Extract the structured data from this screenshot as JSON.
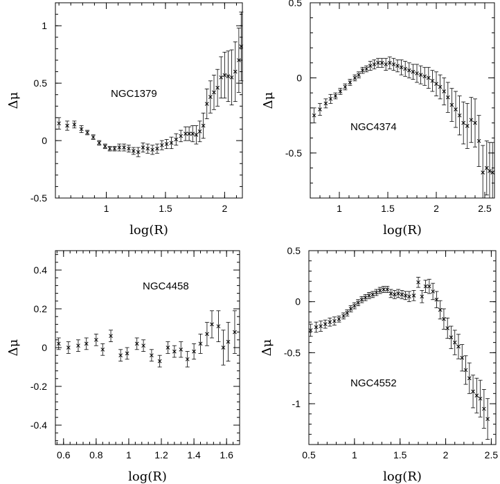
{
  "chart_data": [
    {
      "type": "scatter",
      "annotation": "NGC1379",
      "xlabel": "log(R)",
      "ylabel": "Δμ",
      "xlim": [
        0.57,
        2.15
      ],
      "ylim": [
        -0.5,
        1.2
      ],
      "xticks": [
        {
          "v": 1,
          "label": "1"
        },
        {
          "v": 1.5,
          "label": "1.5"
        },
        {
          "v": 2,
          "label": "2"
        }
      ],
      "yticks": [
        {
          "v": -0.5,
          "label": "-0.5"
        },
        {
          "v": 0,
          "label": "0"
        },
        {
          "v": 0.5,
          "label": "0.5"
        },
        {
          "v": 1,
          "label": "1"
        }
      ],
      "points": [
        {
          "x": 0.6,
          "y": 0.15,
          "e": 0.05
        },
        {
          "x": 0.67,
          "y": 0.13,
          "e": 0.04
        },
        {
          "x": 0.73,
          "y": 0.14,
          "e": 0.03
        },
        {
          "x": 0.79,
          "y": 0.1,
          "e": 0.03
        },
        {
          "x": 0.84,
          "y": 0.07,
          "e": 0.02
        },
        {
          "x": 0.89,
          "y": 0.03,
          "e": 0.02
        },
        {
          "x": 0.94,
          "y": -0.02,
          "e": 0.02
        },
        {
          "x": 0.99,
          "y": -0.05,
          "e": 0.02
        },
        {
          "x": 1.03,
          "y": -0.07,
          "e": 0.02
        },
        {
          "x": 1.07,
          "y": -0.07,
          "e": 0.02
        },
        {
          "x": 1.11,
          "y": -0.06,
          "e": 0.03
        },
        {
          "x": 1.15,
          "y": -0.06,
          "e": 0.03
        },
        {
          "x": 1.19,
          "y": -0.07,
          "e": 0.03
        },
        {
          "x": 1.23,
          "y": -0.09,
          "e": 0.03
        },
        {
          "x": 1.27,
          "y": -0.1,
          "e": 0.04
        },
        {
          "x": 1.31,
          "y": -0.06,
          "e": 0.04
        },
        {
          "x": 1.35,
          "y": -0.07,
          "e": 0.04
        },
        {
          "x": 1.39,
          "y": -0.08,
          "e": 0.04
        },
        {
          "x": 1.43,
          "y": -0.07,
          "e": 0.04
        },
        {
          "x": 1.47,
          "y": -0.04,
          "e": 0.04
        },
        {
          "x": 1.51,
          "y": -0.03,
          "e": 0.04
        },
        {
          "x": 1.55,
          "y": -0.02,
          "e": 0.05
        },
        {
          "x": 1.59,
          "y": 0.01,
          "e": 0.05
        },
        {
          "x": 1.63,
          "y": 0.04,
          "e": 0.05
        },
        {
          "x": 1.67,
          "y": 0.06,
          "e": 0.06
        },
        {
          "x": 1.7,
          "y": 0.06,
          "e": 0.06
        },
        {
          "x": 1.73,
          "y": 0.06,
          "e": 0.07
        },
        {
          "x": 1.76,
          "y": 0.05,
          "e": 0.08
        },
        {
          "x": 1.79,
          "y": 0.08,
          "e": 0.09
        },
        {
          "x": 1.82,
          "y": 0.13,
          "e": 0.11
        },
        {
          "x": 1.85,
          "y": 0.32,
          "e": 0.13
        },
        {
          "x": 1.88,
          "y": 0.38,
          "e": 0.14
        },
        {
          "x": 1.91,
          "y": 0.42,
          "e": 0.15
        },
        {
          "x": 1.94,
          "y": 0.46,
          "e": 0.16
        },
        {
          "x": 1.97,
          "y": 0.55,
          "e": 0.18
        },
        {
          "x": 2.0,
          "y": 0.57,
          "e": 0.2
        },
        {
          "x": 2.03,
          "y": 0.56,
          "e": 0.22
        },
        {
          "x": 2.06,
          "y": 0.55,
          "e": 0.24
        },
        {
          "x": 2.09,
          "y": 0.6,
          "e": 0.26
        },
        {
          "x": 2.12,
          "y": 0.7,
          "e": 0.28
        },
        {
          "x": 2.14,
          "y": 0.82,
          "e": 0.3
        }
      ]
    },
    {
      "type": "scatter",
      "annotation": "NGC4374",
      "xlabel": "log(R)",
      "ylabel": "Δμ",
      "xlim": [
        0.7,
        2.6
      ],
      "ylim": [
        -0.8,
        0.5
      ],
      "xticks": [
        {
          "v": 1,
          "label": "1"
        },
        {
          "v": 1.5,
          "label": "1.5"
        },
        {
          "v": 2,
          "label": "2"
        },
        {
          "v": 2.5,
          "label": "2.5"
        }
      ],
      "yticks": [
        {
          "v": -0.5,
          "label": "-0.5"
        },
        {
          "v": 0,
          "label": "0"
        },
        {
          "v": 0.5,
          "label": "0.5"
        }
      ],
      "points": [
        {
          "x": 0.74,
          "y": -0.25,
          "e": 0.05
        },
        {
          "x": 0.8,
          "y": -0.21,
          "e": 0.04
        },
        {
          "x": 0.86,
          "y": -0.17,
          "e": 0.03
        },
        {
          "x": 0.91,
          "y": -0.14,
          "e": 0.03
        },
        {
          "x": 0.96,
          "y": -0.12,
          "e": 0.02
        },
        {
          "x": 1.01,
          "y": -0.09,
          "e": 0.02
        },
        {
          "x": 1.06,
          "y": -0.06,
          "e": 0.02
        },
        {
          "x": 1.11,
          "y": -0.03,
          "e": 0.02
        },
        {
          "x": 1.16,
          "y": 0.0,
          "e": 0.02
        },
        {
          "x": 1.2,
          "y": 0.02,
          "e": 0.02
        },
        {
          "x": 1.24,
          "y": 0.05,
          "e": 0.02
        },
        {
          "x": 1.28,
          "y": 0.06,
          "e": 0.02
        },
        {
          "x": 1.32,
          "y": 0.08,
          "e": 0.03
        },
        {
          "x": 1.36,
          "y": 0.09,
          "e": 0.03
        },
        {
          "x": 1.4,
          "y": 0.1,
          "e": 0.03
        },
        {
          "x": 1.44,
          "y": 0.1,
          "e": 0.03
        },
        {
          "x": 1.48,
          "y": 0.09,
          "e": 0.04
        },
        {
          "x": 1.52,
          "y": 0.1,
          "e": 0.04
        },
        {
          "x": 1.56,
          "y": 0.09,
          "e": 0.04
        },
        {
          "x": 1.6,
          "y": 0.08,
          "e": 0.04
        },
        {
          "x": 1.64,
          "y": 0.07,
          "e": 0.05
        },
        {
          "x": 1.68,
          "y": 0.06,
          "e": 0.05
        },
        {
          "x": 1.72,
          "y": 0.05,
          "e": 0.05
        },
        {
          "x": 1.76,
          "y": 0.04,
          "e": 0.05
        },
        {
          "x": 1.8,
          "y": 0.03,
          "e": 0.06
        },
        {
          "x": 1.84,
          "y": 0.02,
          "e": 0.06
        },
        {
          "x": 1.88,
          "y": 0.01,
          "e": 0.06
        },
        {
          "x": 1.92,
          "y": 0.0,
          "e": 0.07
        },
        {
          "x": 1.96,
          "y": -0.02,
          "e": 0.07
        },
        {
          "x": 2.0,
          "y": -0.04,
          "e": 0.08
        },
        {
          "x": 2.04,
          "y": -0.06,
          "e": 0.08
        },
        {
          "x": 2.08,
          "y": -0.09,
          "e": 0.09
        },
        {
          "x": 2.12,
          "y": -0.13,
          "e": 0.1
        },
        {
          "x": 2.16,
          "y": -0.18,
          "e": 0.11
        },
        {
          "x": 2.2,
          "y": -0.21,
          "e": 0.12
        },
        {
          "x": 2.24,
          "y": -0.25,
          "e": 0.13
        },
        {
          "x": 2.28,
          "y": -0.3,
          "e": 0.14
        },
        {
          "x": 2.32,
          "y": -0.32,
          "e": 0.15
        },
        {
          "x": 2.36,
          "y": -0.28,
          "e": 0.15
        },
        {
          "x": 2.4,
          "y": -0.3,
          "e": 0.16
        },
        {
          "x": 2.44,
          "y": -0.42,
          "e": 0.17
        },
        {
          "x": 2.48,
          "y": -0.63,
          "e": 0.18
        },
        {
          "x": 2.52,
          "y": -0.6,
          "e": 0.18
        },
        {
          "x": 2.55,
          "y": -0.62,
          "e": 0.19
        },
        {
          "x": 2.58,
          "y": -0.63,
          "e": 0.2
        }
      ]
    },
    {
      "type": "scatter",
      "annotation": "NGC4458",
      "xlabel": "log(R)",
      "ylabel": "Δμ",
      "xlim": [
        0.55,
        1.68
      ],
      "ylim": [
        -0.5,
        0.5
      ],
      "xticks": [
        {
          "v": 0.6,
          "label": "0.6"
        },
        {
          "v": 0.8,
          "label": "0.8"
        },
        {
          "v": 1.0,
          "label": "1"
        },
        {
          "v": 1.2,
          "label": "1.2"
        },
        {
          "v": 1.4,
          "label": "1.4"
        },
        {
          "v": 1.6,
          "label": "1.6"
        }
      ],
      "yticks": [
        {
          "v": -0.4,
          "label": "-0.4"
        },
        {
          "v": -0.2,
          "label": "-0.2"
        },
        {
          "v": 0,
          "label": "0"
        },
        {
          "v": 0.2,
          "label": "0.2"
        },
        {
          "v": 0.4,
          "label": "0.4"
        }
      ],
      "points": [
        {
          "x": 0.57,
          "y": 0.02,
          "e": 0.03
        },
        {
          "x": 0.63,
          "y": 0.0,
          "e": 0.03
        },
        {
          "x": 0.69,
          "y": 0.01,
          "e": 0.03
        },
        {
          "x": 0.74,
          "y": 0.02,
          "e": 0.03
        },
        {
          "x": 0.8,
          "y": 0.04,
          "e": 0.03
        },
        {
          "x": 0.84,
          "y": -0.01,
          "e": 0.03
        },
        {
          "x": 0.89,
          "y": 0.06,
          "e": 0.03
        },
        {
          "x": 0.95,
          "y": -0.04,
          "e": 0.03
        },
        {
          "x": 0.99,
          "y": -0.03,
          "e": 0.03
        },
        {
          "x": 1.05,
          "y": 0.02,
          "e": 0.03
        },
        {
          "x": 1.09,
          "y": 0.01,
          "e": 0.03
        },
        {
          "x": 1.14,
          "y": -0.04,
          "e": 0.03
        },
        {
          "x": 1.19,
          "y": -0.07,
          "e": 0.03
        },
        {
          "x": 1.24,
          "y": 0.0,
          "e": 0.03
        },
        {
          "x": 1.28,
          "y": -0.02,
          "e": 0.03
        },
        {
          "x": 1.32,
          "y": -0.01,
          "e": 0.04
        },
        {
          "x": 1.36,
          "y": -0.06,
          "e": 0.04
        },
        {
          "x": 1.4,
          "y": -0.02,
          "e": 0.04
        },
        {
          "x": 1.44,
          "y": 0.02,
          "e": 0.05
        },
        {
          "x": 1.48,
          "y": 0.07,
          "e": 0.06
        },
        {
          "x": 1.51,
          "y": 0.12,
          "e": 0.07
        },
        {
          "x": 1.55,
          "y": 0.11,
          "e": 0.08
        },
        {
          "x": 1.58,
          "y": 0.0,
          "e": 0.09
        },
        {
          "x": 1.61,
          "y": 0.03,
          "e": 0.1
        },
        {
          "x": 1.65,
          "y": 0.08,
          "e": 0.11
        }
      ]
    },
    {
      "type": "scatter",
      "annotation": "NGC4552",
      "xlabel": "log(R)",
      "ylabel": "Δμ",
      "xlim": [
        0.5,
        2.55
      ],
      "ylim": [
        -1.4,
        0.5
      ],
      "xticks": [
        {
          "v": 0.5,
          "label": "0.5"
        },
        {
          "v": 1,
          "label": "1"
        },
        {
          "v": 1.5,
          "label": "1.5"
        },
        {
          "v": 2,
          "label": "2"
        },
        {
          "v": 2.5,
          "label": "2.5"
        }
      ],
      "yticks": [
        {
          "v": -1,
          "label": "-1"
        },
        {
          "v": -0.5,
          "label": "-0.5"
        },
        {
          "v": 0,
          "label": "0"
        },
        {
          "v": 0.5,
          "label": "0.5"
        }
      ],
      "points": [
        {
          "x": 0.52,
          "y": -0.28,
          "e": 0.06
        },
        {
          "x": 0.58,
          "y": -0.25,
          "e": 0.05
        },
        {
          "x": 0.63,
          "y": -0.24,
          "e": 0.05
        },
        {
          "x": 0.68,
          "y": -0.22,
          "e": 0.04
        },
        {
          "x": 0.73,
          "y": -0.2,
          "e": 0.04
        },
        {
          "x": 0.78,
          "y": -0.19,
          "e": 0.04
        },
        {
          "x": 0.83,
          "y": -0.17,
          "e": 0.03
        },
        {
          "x": 0.88,
          "y": -0.14,
          "e": 0.03
        },
        {
          "x": 0.92,
          "y": -0.11,
          "e": 0.03
        },
        {
          "x": 0.96,
          "y": -0.07,
          "e": 0.03
        },
        {
          "x": 1.0,
          "y": -0.04,
          "e": 0.03
        },
        {
          "x": 1.04,
          "y": -0.01,
          "e": 0.03
        },
        {
          "x": 1.08,
          "y": 0.02,
          "e": 0.03
        },
        {
          "x": 1.12,
          "y": 0.04,
          "e": 0.03
        },
        {
          "x": 1.16,
          "y": 0.06,
          "e": 0.03
        },
        {
          "x": 1.2,
          "y": 0.07,
          "e": 0.03
        },
        {
          "x": 1.24,
          "y": 0.09,
          "e": 0.03
        },
        {
          "x": 1.28,
          "y": 0.11,
          "e": 0.03
        },
        {
          "x": 1.32,
          "y": 0.12,
          "e": 0.03
        },
        {
          "x": 1.36,
          "y": 0.12,
          "e": 0.03
        },
        {
          "x": 1.4,
          "y": 0.08,
          "e": 0.04
        },
        {
          "x": 1.44,
          "y": 0.07,
          "e": 0.04
        },
        {
          "x": 1.48,
          "y": 0.08,
          "e": 0.04
        },
        {
          "x": 1.52,
          "y": 0.07,
          "e": 0.04
        },
        {
          "x": 1.56,
          "y": 0.06,
          "e": 0.04
        },
        {
          "x": 1.6,
          "y": 0.05,
          "e": 0.05
        },
        {
          "x": 1.65,
          "y": 0.06,
          "e": 0.05
        },
        {
          "x": 1.7,
          "y": 0.19,
          "e": 0.05
        },
        {
          "x": 1.74,
          "y": 0.05,
          "e": 0.06
        },
        {
          "x": 1.78,
          "y": 0.15,
          "e": 0.06
        },
        {
          "x": 1.82,
          "y": 0.15,
          "e": 0.07
        },
        {
          "x": 1.86,
          "y": 0.1,
          "e": 0.08
        },
        {
          "x": 1.9,
          "y": 0.02,
          "e": 0.08
        },
        {
          "x": 1.94,
          "y": -0.08,
          "e": 0.09
        },
        {
          "x": 1.98,
          "y": -0.17,
          "e": 0.1
        },
        {
          "x": 2.02,
          "y": -0.26,
          "e": 0.1
        },
        {
          "x": 2.06,
          "y": -0.35,
          "e": 0.11
        },
        {
          "x": 2.1,
          "y": -0.4,
          "e": 0.12
        },
        {
          "x": 2.14,
          "y": -0.44,
          "e": 0.12
        },
        {
          "x": 2.18,
          "y": -0.55,
          "e": 0.13
        },
        {
          "x": 2.22,
          "y": -0.67,
          "e": 0.14
        },
        {
          "x": 2.26,
          "y": -0.75,
          "e": 0.15
        },
        {
          "x": 2.3,
          "y": -0.88,
          "e": 0.16
        },
        {
          "x": 2.34,
          "y": -0.92,
          "e": 0.17
        },
        {
          "x": 2.38,
          "y": -0.95,
          "e": 0.18
        },
        {
          "x": 2.42,
          "y": -1.05,
          "e": 0.19
        },
        {
          "x": 2.46,
          "y": -1.15,
          "e": 0.2
        }
      ]
    }
  ]
}
